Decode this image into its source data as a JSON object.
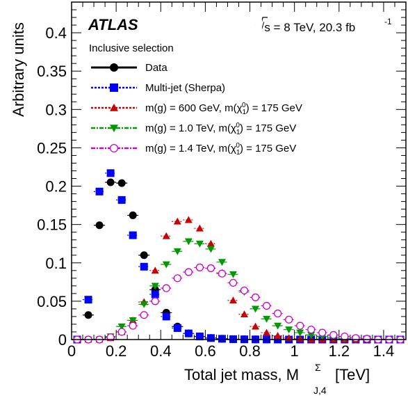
{
  "chart_data": {
    "type": "scatter",
    "title": "",
    "experiment": "ATLAS",
    "energy_label": "√s = 8 TeV, 20.3 fb",
    "energy_label_sup": "-1",
    "selection": "Inclusive selection",
    "xlabel": "Total jet mass, M",
    "xlabel_sup": "Σ",
    "xlabel_sub": "J,4",
    "xlabel_unit": "[TeV]",
    "ylabel": "Arbitrary units",
    "xlim": [
      0,
      1.5
    ],
    "ylim": [
      0,
      0.44
    ],
    "x_ticks": [
      0,
      0.2,
      0.4,
      0.6,
      0.8,
      1,
      1.2,
      1.4
    ],
    "x_tick_labels": [
      "0",
      "0.2",
      "0.4",
      "0.6",
      "0.8",
      "1",
      "1.2",
      "1.4"
    ],
    "y_ticks": [
      0,
      0.05,
      0.1,
      0.15,
      0.2,
      0.25,
      0.3,
      0.35,
      0.4
    ],
    "y_tick_labels": [
      "0",
      "0.05",
      "0.1",
      "0.15",
      "0.2",
      "0.25",
      "0.3",
      "0.35",
      "0.4"
    ],
    "legend_placement": "top-left",
    "x": [
      0.025,
      0.075,
      0.125,
      0.175,
      0.225,
      0.275,
      0.325,
      0.375,
      0.425,
      0.475,
      0.525,
      0.575,
      0.625,
      0.675,
      0.725,
      0.775,
      0.825,
      0.875,
      0.925,
      0.975,
      1.025,
      1.075,
      1.125,
      1.175,
      1.225,
      1.275,
      1.325,
      1.375,
      1.425,
      1.475
    ],
    "series": [
      {
        "name": "Data",
        "marker": "filled-circle",
        "color": "#000000",
        "line": "solid",
        "values": [
          0.0,
          0.032,
          0.149,
          0.205,
          0.204,
          0.162,
          0.11,
          0.065,
          0.035,
          0.017,
          0.008,
          0.004,
          0.002,
          0.001,
          0.0005,
          0.0003,
          0.0002,
          0.0001,
          0.0,
          0.0,
          0.0,
          0.0,
          0.0,
          0.0,
          0.0,
          0.0,
          0.0,
          0.0,
          0.0,
          0.0
        ]
      },
      {
        "name": "Multi-jet (Sherpa)",
        "marker": "filled-square",
        "color": "#0000ff",
        "line": "dotted",
        "values": [
          0.0,
          0.052,
          0.193,
          0.217,
          0.182,
          0.136,
          0.095,
          0.059,
          0.03,
          0.015,
          0.008,
          0.004,
          0.002,
          0.001,
          0.0005,
          0.0003,
          0.0002,
          0.0001,
          0.0,
          0.0,
          0.0,
          0.0,
          0.0,
          0.0,
          0.0,
          0.0,
          0.0,
          0.0,
          0.0,
          0.0
        ]
      },
      {
        "name": "m(g̃) = 600 GeV, m(χ̃₁⁰) = 175 GeV",
        "legend_parts": [
          "m(",
          "g",
          ") = 600 GeV, m(",
          "χ",
          "1",
          "0",
          ") = 175 GeV"
        ],
        "marker": "filled-triangle-up",
        "color": "#cc0000",
        "line": "dotted",
        "values": [
          0.0,
          0.0,
          0.0,
          0.002,
          0.01,
          0.025,
          0.049,
          0.09,
          0.135,
          0.154,
          0.156,
          0.145,
          0.125,
          0.087,
          0.051,
          0.033,
          0.017,
          0.009,
          0.005,
          0.002,
          0.001,
          0.0,
          0.0,
          0.0,
          0.0,
          0.0,
          0.0,
          0.0,
          0.0,
          0.0
        ]
      },
      {
        "name": "m(g̃) = 1.0 TeV, m(χ̃₁⁰) = 175 GeV",
        "legend_parts": [
          "m(",
          "g",
          ") = 1.0 TeV, m(",
          "χ",
          "1",
          "0",
          ") = 175 GeV"
        ],
        "marker": "filled-triangle-down",
        "color": "#009900",
        "line": "dash-dot",
        "values": [
          0.0,
          0.0,
          0.0,
          0.004,
          0.017,
          0.025,
          0.046,
          0.07,
          0.098,
          0.115,
          0.128,
          0.125,
          0.118,
          0.101,
          0.085,
          0.062,
          0.04,
          0.027,
          0.018,
          0.013,
          0.009,
          0.006,
          0.004,
          0.002,
          0.001,
          0.0,
          0.0,
          0.0,
          0.0,
          0.0
        ]
      },
      {
        "name": "m(g̃) = 1.4 TeV, m(χ̃₁⁰) = 175 GeV",
        "legend_parts": [
          "m(",
          "g",
          ") = 1.4 TeV, m(",
          "χ",
          "1",
          "0",
          ") = 175 GeV"
        ],
        "marker": "open-circle",
        "color": "#cc00cc",
        "line": "dash-dot",
        "values": [
          0.0,
          0.0,
          0.0,
          0.003,
          0.01,
          0.018,
          0.032,
          0.05,
          0.067,
          0.08,
          0.088,
          0.094,
          0.093,
          0.086,
          0.074,
          0.064,
          0.055,
          0.044,
          0.034,
          0.026,
          0.018,
          0.013,
          0.009,
          0.006,
          0.004,
          0.002,
          0.001,
          0.0,
          0.0,
          0.0
        ]
      }
    ]
  }
}
